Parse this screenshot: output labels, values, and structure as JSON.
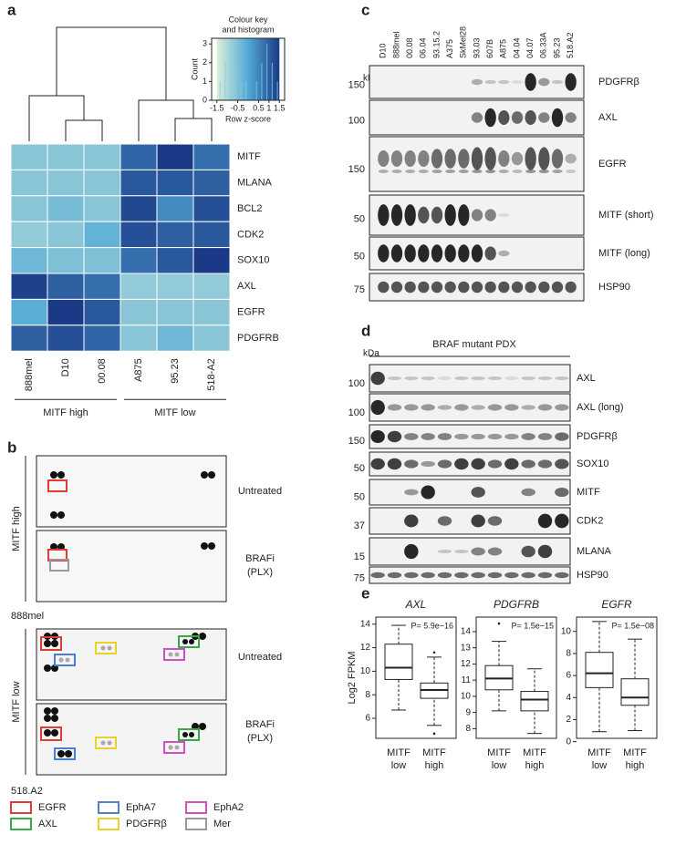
{
  "panel_labels": [
    "a",
    "b",
    "c",
    "d",
    "e"
  ],
  "chart_data": [
    {
      "type": "heatmap",
      "rows": [
        "MITF",
        "MLANA",
        "BCL2",
        "CDK2",
        "SOX10",
        "AXL",
        "EGFR",
        "PDGFRB"
      ],
      "columns": [
        "888mel",
        "D10",
        "00.08",
        "A875",
        "95.23",
        "518-A2"
      ],
      "values": [
        [
          -0.6,
          -0.6,
          -0.6,
          0.9,
          1.5,
          0.8
        ],
        [
          -0.6,
          -0.6,
          -0.6,
          1.1,
          1.1,
          1.0
        ],
        [
          -0.6,
          -0.4,
          -0.6,
          1.3,
          0.4,
          1.2
        ],
        [
          -0.7,
          -0.6,
          -0.2,
          1.2,
          1.0,
          1.1
        ],
        [
          -0.3,
          -0.5,
          -0.5,
          0.8,
          1.1,
          1.5
        ],
        [
          1.4,
          1.0,
          0.8,
          -0.7,
          -0.7,
          -0.7
        ],
        [
          -0.1,
          1.5,
          1.1,
          -0.6,
          -0.6,
          -0.6
        ],
        [
          1.0,
          1.2,
          0.9,
          -0.6,
          -0.3,
          -0.6
        ]
      ],
      "colorscale": [
        "#dcefd8",
        "#52a9d6",
        "#1a3a87"
      ],
      "zlim": [
        -1.5,
        1.5
      ],
      "groups": [
        "MITF high",
        "MITF low"
      ],
      "color_key": {
        "title": [
          "Colour key",
          "and histogram"
        ],
        "ylabel": "Count",
        "xlabel": "Row z-score",
        "xlim": [
          -1.75,
          1.75
        ],
        "xticks": [
          -1.5,
          -0.5,
          0.5,
          1,
          1.5
        ],
        "ylim": [
          0,
          3.3
        ],
        "yticks": [
          0,
          1,
          2,
          3
        ],
        "bins": [
          -1.5,
          -1.25,
          -1,
          -0.75,
          -0.5,
          -0.25,
          0,
          0.25,
          0.5,
          0.75,
          1,
          1.25,
          1.5
        ],
        "counts": [
          1,
          2,
          3,
          2,
          1,
          1,
          0,
          1,
          2,
          3,
          2,
          1
        ],
        "hist_color": "#7fd0e8"
      }
    },
    {
      "type": "box",
      "title": "AXL",
      "ylabel": "Log2 FPKM",
      "annotation": "P= 5.9e−16",
      "categories": [
        [
          "MITF",
          "low"
        ],
        [
          "MITF",
          "high"
        ]
      ],
      "ylim": [
        4.3,
        14.6
      ],
      "yticks": [
        6,
        8,
        10,
        12,
        14
      ],
      "boxes": [
        {
          "whisker_low": 6.7,
          "q1": 9.3,
          "median": 10.3,
          "q3": 12.3,
          "whisker_high": 13.9,
          "outliers": []
        },
        {
          "whisker_low": 5.4,
          "q1": 7.7,
          "median": 8.4,
          "q3": 9.0,
          "whisker_high": 11.2,
          "outliers": [
            4.7,
            11.6
          ]
        }
      ]
    },
    {
      "type": "box",
      "title": "PDGFRB",
      "annotation": "P= 1.5e−15",
      "categories": [
        [
          "MITF",
          "low"
        ],
        [
          "MITF",
          "high"
        ]
      ],
      "ylim": [
        7.4,
        14.9
      ],
      "yticks": [
        8,
        9,
        10,
        11,
        12,
        13,
        14
      ],
      "boxes": [
        {
          "whisker_low": 9.1,
          "q1": 10.4,
          "median": 11.1,
          "q3": 11.9,
          "whisker_high": 13.4,
          "outliers": [
            14.5
          ]
        },
        {
          "whisker_low": 7.7,
          "q1": 9.1,
          "median": 9.8,
          "q3": 10.3,
          "whisker_high": 11.7,
          "outliers": []
        }
      ]
    },
    {
      "type": "box",
      "title": "EGFR",
      "annotation": "P= 1.5e−08",
      "categories": [
        [
          "MITF",
          "low"
        ],
        [
          "MITF",
          "high"
        ]
      ],
      "ylim": [
        0.3,
        11.3
      ],
      "yticks": [
        0,
        2,
        4,
        6,
        8,
        10
      ],
      "boxes": [
        {
          "whisker_low": 0.9,
          "q1": 4.9,
          "median": 6.2,
          "q3": 8.1,
          "whisker_high": 10.9,
          "outliers": []
        },
        {
          "whisker_low": 1.0,
          "q1": 3.3,
          "median": 4.0,
          "q3": 5.7,
          "whisker_high": 9.3,
          "outliers": []
        }
      ]
    }
  ],
  "panel_b": {
    "high_group": "MITF high",
    "low_group": "MITF low",
    "treatments": [
      "Untreated",
      "BRAFi",
      "(PLX)"
    ],
    "line_high": "888mel",
    "line_low": "518.A2",
    "legend": [
      {
        "name": "EGFR",
        "color": "#e53935"
      },
      {
        "name": "EphA7",
        "color": "#4a7fd1"
      },
      {
        "name": "EphA2",
        "color": "#d04fc9"
      },
      {
        "name": "AXL",
        "color": "#3aa845"
      },
      {
        "name": "PDGFRβ",
        "color": "#e8d22a"
      },
      {
        "name": "Mer",
        "color": "#999999"
      }
    ]
  },
  "panel_c": {
    "unit": "kDa",
    "lanes": [
      "D10",
      "888mel",
      "00.08",
      "06.04",
      "93.15.2",
      "A375",
      "SkMel28",
      "93.03",
      "607B",
      "A875",
      "04.04",
      "04.07",
      "06.33A",
      "95.23",
      "518.A2"
    ],
    "blots": [
      {
        "name": "PDGFRβ",
        "marker": 150
      },
      {
        "name": "AXL",
        "marker": 100
      },
      {
        "name": "EGFR",
        "marker": 150
      },
      {
        "name": "MITF (short)",
        "marker": 50
      },
      {
        "name": "MITF (long)",
        "marker": 50
      },
      {
        "name": "HSP90",
        "marker": 75
      }
    ]
  },
  "panel_d": {
    "unit": "kDa",
    "title": "BRAF mutant PDX",
    "blots": [
      {
        "name": "AXL",
        "marker": 100
      },
      {
        "name": "AXL (long)",
        "marker": 100
      },
      {
        "name": "PDGFRβ",
        "marker": 150
      },
      {
        "name": "SOX10",
        "marker": 50
      },
      {
        "name": "MITF",
        "marker": 50
      },
      {
        "name": "CDK2",
        "marker": 37
      },
      {
        "name": "MLANA",
        "marker": 15
      },
      {
        "name": "HSP90",
        "marker": 75
      }
    ]
  }
}
